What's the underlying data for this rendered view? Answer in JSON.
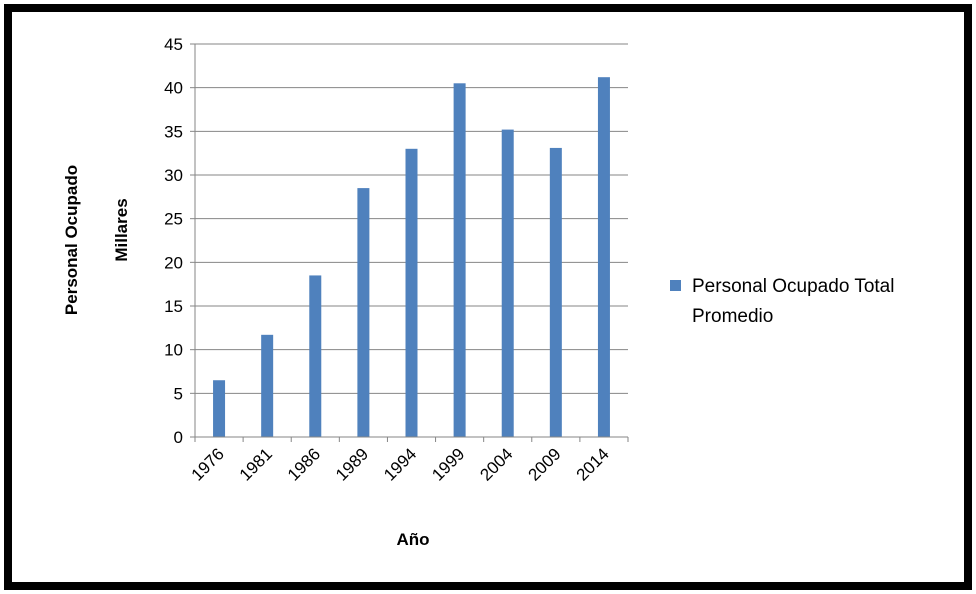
{
  "chart_data": {
    "type": "bar",
    "title": "",
    "xlabel": "Año",
    "ylabel": "Personal Ocupado",
    "ylabel_secondary": "Millares",
    "categories": [
      "1976",
      "1981",
      "1986",
      "1989",
      "1994",
      "1999",
      "2004",
      "2009",
      "2014"
    ],
    "series": [
      {
        "name": "Personal Ocupado Total Promedio",
        "values": [
          6.5,
          11.7,
          18.5,
          28.5,
          33,
          40.5,
          35.2,
          33.1,
          41.2
        ],
        "color": "#4F81BD"
      }
    ],
    "ylim": [
      0,
      45
    ],
    "yticks": [
      0,
      5,
      10,
      15,
      20,
      25,
      30,
      35,
      40,
      45
    ],
    "grid": true,
    "legend_position": "right",
    "legend_lines": [
      "Personal Ocupado Total",
      "Promedio"
    ]
  }
}
